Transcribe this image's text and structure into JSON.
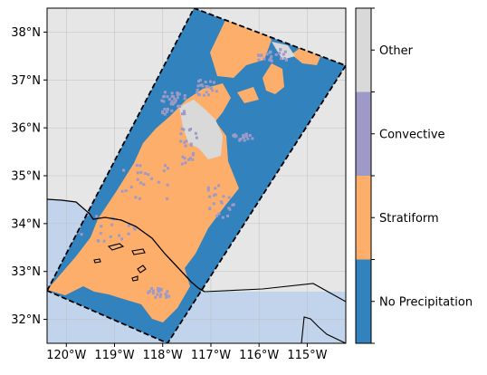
{
  "map": {
    "lon_range": [
      -120.4,
      -114.2
    ],
    "lat_range": [
      31.5,
      38.5
    ],
    "x_ticks": [
      {
        "value": -120,
        "label": "120°W"
      },
      {
        "value": -119,
        "label": "119°W"
      },
      {
        "value": -118,
        "label": "118°W"
      },
      {
        "value": -117,
        "label": "117°W"
      },
      {
        "value": -116,
        "label": "116°W"
      },
      {
        "value": -115,
        "label": "115°W"
      }
    ],
    "y_ticks": [
      {
        "value": 32,
        "label": "32°N"
      },
      {
        "value": 33,
        "label": "33°N"
      },
      {
        "value": 34,
        "label": "34°N"
      },
      {
        "value": 35,
        "label": "35°N"
      },
      {
        "value": 36,
        "label": "36°N"
      },
      {
        "value": 37,
        "label": "37°N"
      },
      {
        "value": 38,
        "label": "38°N"
      }
    ],
    "grid": true,
    "colors": {
      "land": "#e6e6e6",
      "ocean": "#c2d4ec",
      "coast": "#000000",
      "swath_outline": "#000000"
    },
    "swath_corners": [
      [
        -120.4,
        32.6
      ],
      [
        -117.35,
        38.5
      ],
      [
        -114.2,
        37.3
      ],
      [
        -117.9,
        31.5
      ]
    ]
  },
  "colorbar": {
    "position": "right",
    "categories": [
      {
        "label": "No Precipitation",
        "color": "#3182bd"
      },
      {
        "label": "Stratiform",
        "color": "#fdae6b"
      },
      {
        "label": "Convective",
        "color": "#9e9ac8"
      },
      {
        "label": "Other",
        "color": "#d9d9d9"
      }
    ]
  }
}
